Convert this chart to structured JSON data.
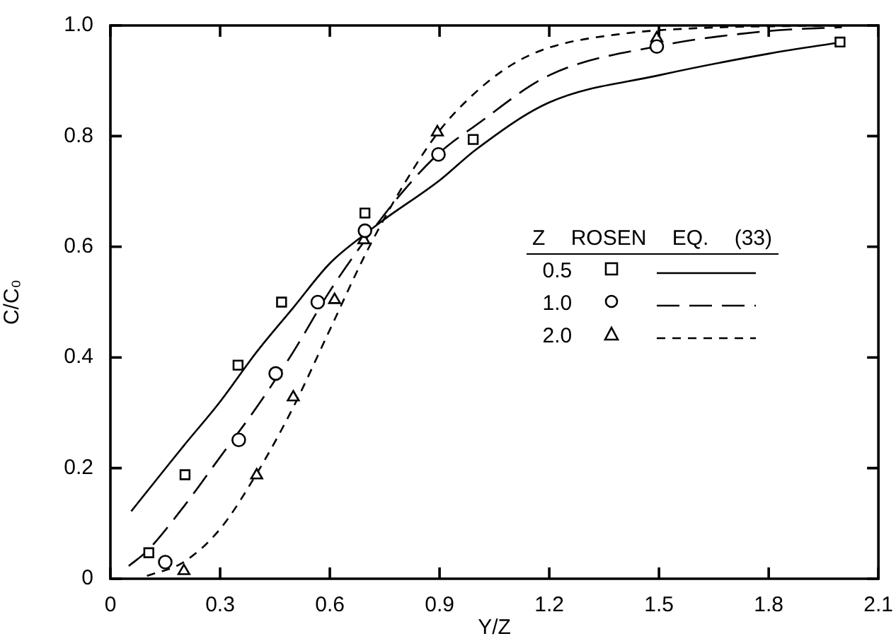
{
  "chart_data": {
    "type": "scatter",
    "xlabel": "Y/Z",
    "ylabel": "C/C₀",
    "legend_title": "Z ROSEN EQ. (33)",
    "legend": "right",
    "grid": false,
    "xlim": [
      0,
      2.1
    ],
    "ylim": [
      0,
      1.0
    ],
    "xticks": [
      0,
      0.3,
      0.6,
      0.9,
      1.2,
      1.5,
      1.8,
      2.1
    ],
    "yticks": [
      0,
      0.2,
      0.4,
      0.6,
      0.8,
      {
        "value": 1.0,
        "label": "1.0"
      }
    ],
    "series": [
      {
        "name": "0.5",
        "marker": "square",
        "color": "#000000",
        "x": [
          0.105,
          0.204,
          0.349,
          0.468,
          0.696,
          0.992,
          1.995
        ],
        "values": [
          0.047,
          0.188,
          0.386,
          0.5,
          0.661,
          0.794,
          0.97
        ]
      },
      {
        "type": "line",
        "marker": "none",
        "line_style": "solid",
        "color": "#000000",
        "x": [
          0.057,
          0.2,
          0.3,
          0.4,
          0.5,
          0.6,
          0.7,
          0.75,
          0.9,
          1.0,
          1.2,
          1.5,
          1.8,
          2.0
        ],
        "values": [
          0.122,
          0.24,
          0.32,
          0.41,
          0.49,
          0.57,
          0.625,
          0.65,
          0.72,
          0.776,
          0.861,
          0.91,
          0.949,
          0.97
        ]
      },
      {
        "name": "1.0",
        "marker": "circle",
        "color": "#000000",
        "x": [
          0.15,
          0.351,
          0.452,
          0.567,
          0.696,
          0.897,
          1.494
        ],
        "values": [
          0.03,
          0.251,
          0.371,
          0.5,
          0.629,
          0.767,
          0.962
        ]
      },
      {
        "type": "line",
        "marker": "none",
        "line_style": "dashed",
        "color": "#000000",
        "x": [
          0.05,
          0.1,
          0.2,
          0.3,
          0.4,
          0.5,
          0.6,
          0.7,
          0.8,
          0.9,
          1.0,
          1.2,
          1.5,
          1.8,
          2.0
        ],
        "values": [
          0.023,
          0.05,
          0.13,
          0.22,
          0.31,
          0.41,
          0.52,
          0.615,
          0.7,
          0.77,
          0.82,
          0.91,
          0.963,
          0.99,
          0.997
        ]
      },
      {
        "name": "2.0",
        "marker": "triangle",
        "color": "#000000",
        "x": [
          0.201,
          0.4,
          0.5,
          0.613,
          0.693,
          0.894,
          1.494
        ],
        "values": [
          0.014,
          0.187,
          0.328,
          0.504,
          0.612,
          0.807,
          0.977
        ]
      },
      {
        "type": "line",
        "marker": "none",
        "line_style": "dotted",
        "color": "#000000",
        "x": [
          0.1,
          0.2,
          0.3,
          0.4,
          0.5,
          0.6,
          0.7,
          0.8,
          0.9,
          1.0,
          1.1,
          1.2,
          1.4,
          1.6,
          2.0
        ],
        "values": [
          0.005,
          0.03,
          0.09,
          0.19,
          0.31,
          0.45,
          0.59,
          0.71,
          0.81,
          0.88,
          0.93,
          0.96,
          0.985,
          0.995,
          1.0
        ]
      }
    ]
  }
}
